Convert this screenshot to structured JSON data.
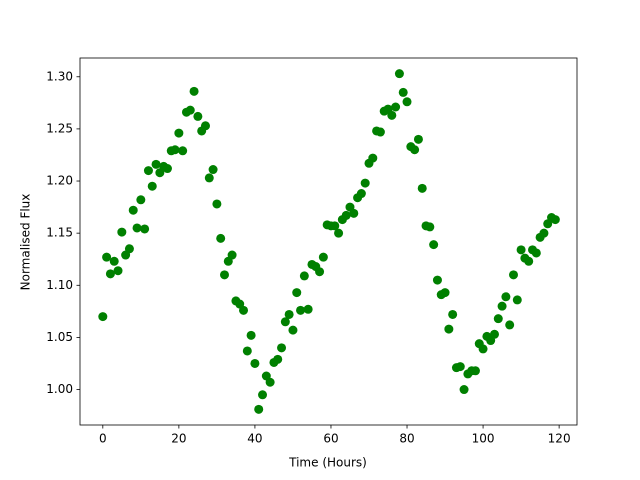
{
  "chart_data": {
    "type": "scatter",
    "x_label": "Time (Hours)",
    "y_label": "Normalised Flux",
    "x": [
      0,
      1,
      2,
      3,
      4,
      5,
      6,
      7,
      8,
      9,
      10,
      11,
      12,
      13,
      14,
      15,
      16,
      17,
      18,
      19,
      20,
      21,
      22,
      23,
      24,
      25,
      26,
      27,
      28,
      29,
      30,
      31,
      32,
      33,
      34,
      35,
      36,
      37,
      38,
      39,
      40,
      41,
      42,
      43,
      44,
      45,
      46,
      47,
      48,
      49,
      50,
      51,
      52,
      53,
      54,
      55,
      56,
      57,
      58,
      59,
      60,
      61,
      62,
      63,
      64,
      65,
      66,
      67,
      68,
      69,
      70,
      71,
      72,
      73,
      74,
      75,
      76,
      77,
      78,
      79,
      80,
      81,
      82,
      83,
      84,
      85,
      86,
      87,
      88,
      89,
      90,
      91,
      92,
      93,
      94,
      95,
      96,
      97,
      98,
      99,
      100,
      101,
      102,
      103,
      104,
      105,
      106,
      107,
      108,
      109,
      110,
      111,
      112,
      113,
      114,
      115,
      116,
      117,
      118,
      119
    ],
    "values": [
      1.07,
      1.127,
      1.111,
      1.123,
      1.114,
      1.151,
      1.129,
      1.135,
      1.172,
      1.155,
      1.182,
      1.154,
      1.21,
      1.195,
      1.216,
      1.208,
      1.214,
      1.212,
      1.229,
      1.23,
      1.246,
      1.229,
      1.266,
      1.268,
      1.286,
      1.262,
      1.248,
      1.253,
      1.203,
      1.211,
      1.178,
      1.145,
      1.11,
      1.123,
      1.129,
      1.085,
      1.082,
      1.076,
      1.037,
      1.052,
      1.025,
      0.981,
      0.995,
      1.013,
      1.007,
      1.026,
      1.029,
      1.04,
      1.065,
      1.072,
      1.057,
      1.093,
      1.076,
      1.109,
      1.077,
      1.12,
      1.118,
      1.113,
      1.127,
      1.158,
      1.157,
      1.157,
      1.15,
      1.163,
      1.167,
      1.175,
      1.169,
      1.184,
      1.188,
      1.198,
      1.217,
      1.222,
      1.248,
      1.247,
      1.267,
      1.269,
      1.263,
      1.271,
      1.303,
      1.285,
      1.276,
      1.233,
      1.23,
      1.24,
      1.193,
      1.157,
      1.156,
      1.139,
      1.105,
      1.091,
      1.093,
      1.058,
      1.072,
      1.021,
      1.022,
      1.0,
      1.015,
      1.018,
      1.018,
      1.044,
      1.039,
      1.051,
      1.047,
      1.053,
      1.068,
      1.08,
      1.089,
      1.062,
      1.11,
      1.086,
      1.134,
      1.126,
      1.123,
      1.134,
      1.131,
      1.146,
      1.15,
      1.159,
      1.165,
      1.163
    ],
    "color": "#008000",
    "xlim": [
      -6,
      124.7
    ],
    "ylim": [
      0.966,
      1.318
    ],
    "xticks": [
      0,
      20,
      40,
      60,
      80,
      100,
      120
    ],
    "yticks": [
      {
        "value": 1.0,
        "label": "1.00"
      },
      {
        "value": 1.05,
        "label": "1.05"
      },
      {
        "value": 1.1,
        "label": "1.10"
      },
      {
        "value": 1.15,
        "label": "1.15"
      },
      {
        "value": 1.2,
        "label": "1.20"
      },
      {
        "value": 1.25,
        "label": "1.25"
      },
      {
        "value": 1.3,
        "label": "1.30"
      }
    ]
  }
}
